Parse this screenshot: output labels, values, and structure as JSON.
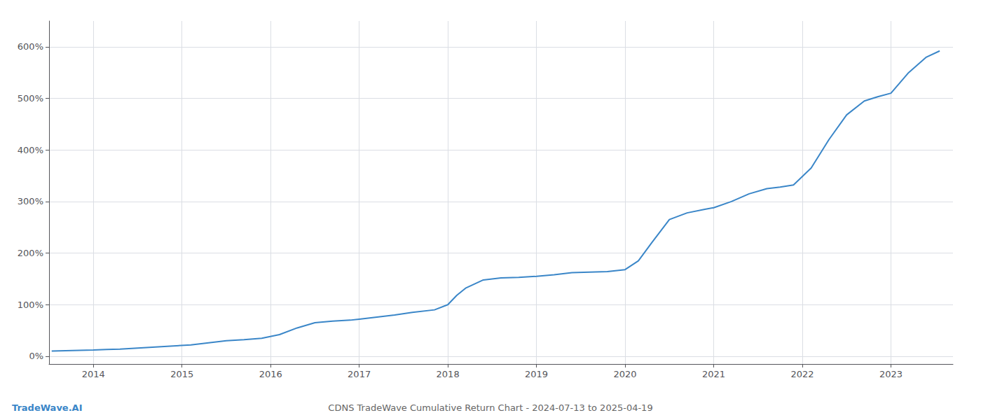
{
  "chart_data": {
    "type": "line",
    "title": "CDNS TradeWave Cumulative Return Chart - 2024-07-13 to 2025-04-19",
    "annotations": [
      "TradeWave.AI"
    ],
    "color": "#3a86c8",
    "grid": true,
    "x": [
      2013.53,
      2014.0,
      2014.15,
      2014.3,
      2014.5,
      2014.7,
      2014.9,
      2015.1,
      2015.3,
      2015.5,
      2015.7,
      2015.9,
      2016.1,
      2016.3,
      2016.5,
      2016.7,
      2016.9,
      2017.0,
      2017.2,
      2017.4,
      2017.6,
      2017.85,
      2018.0,
      2018.1,
      2018.2,
      2018.4,
      2018.6,
      2018.8,
      2019.0,
      2019.2,
      2019.4,
      2019.6,
      2019.8,
      2020.0,
      2020.15,
      2020.3,
      2020.5,
      2020.7,
      2020.9,
      2021.0,
      2021.2,
      2021.4,
      2021.6,
      2021.75,
      2021.9,
      2022.1,
      2022.3,
      2022.5,
      2022.7,
      2022.85,
      2023.0,
      2023.2,
      2023.4,
      2023.55
    ],
    "values": [
      10,
      12,
      13,
      14,
      16,
      18,
      20,
      22,
      26,
      30,
      32,
      35,
      42,
      55,
      65,
      68,
      70,
      72,
      76,
      80,
      85,
      90,
      100,
      118,
      132,
      148,
      152,
      153,
      155,
      158,
      162,
      163,
      164,
      168,
      185,
      220,
      265,
      278,
      285,
      288,
      300,
      315,
      325,
      328,
      332,
      365,
      420,
      468,
      495,
      503,
      510,
      550,
      580,
      592
    ],
    "xlim": [
      2013.5,
      2023.7
    ],
    "xticks": [
      2014,
      2015,
      2016,
      2017,
      2018,
      2019,
      2020,
      2021,
      2022,
      2023
    ],
    "ylim": [
      -15,
      650
    ],
    "yticks": [
      {
        "value": 0,
        "label": "0%"
      },
      {
        "value": 100,
        "label": "100%"
      },
      {
        "value": 200,
        "label": "200%"
      },
      {
        "value": 300,
        "label": "300%"
      },
      {
        "value": 400,
        "label": "400%"
      },
      {
        "value": 500,
        "label": "500%"
      },
      {
        "value": 600,
        "label": "600%"
      }
    ]
  }
}
